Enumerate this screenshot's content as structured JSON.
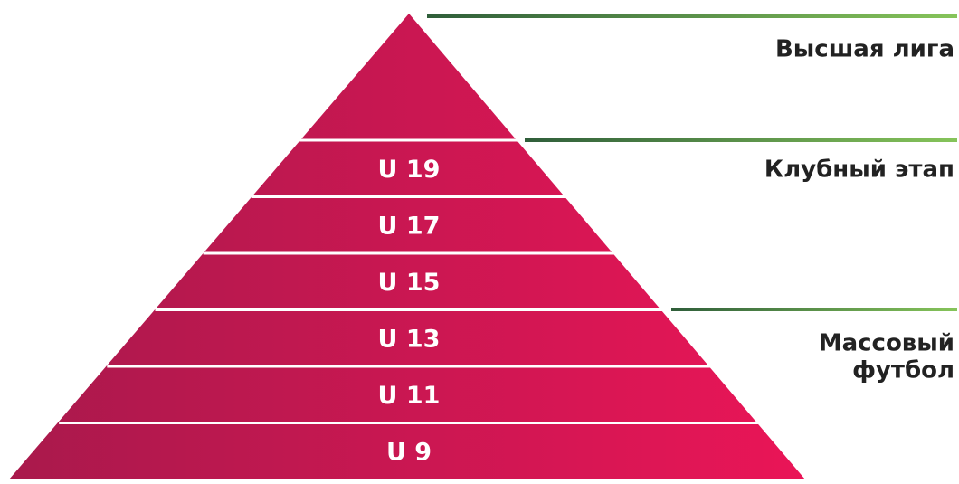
{
  "levels": [
    "U 19",
    "U 17",
    "U 15",
    "U 13",
    "U 11",
    "U 9"
  ],
  "stages": [
    [
      "Высшая лига"
    ],
    [
      "Клубный этап"
    ],
    [
      "Массовый",
      "футбол"
    ]
  ]
}
